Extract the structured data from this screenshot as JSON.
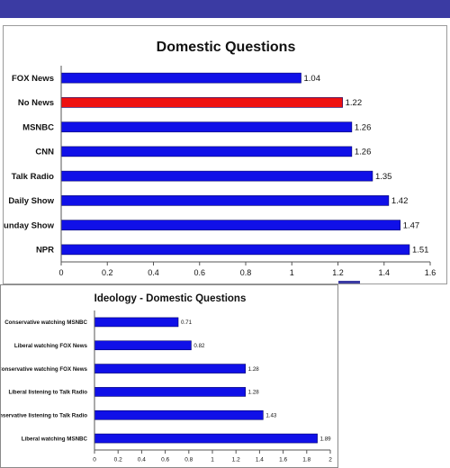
{
  "colors": {
    "top_band": "#3b3ba3",
    "bar": "#1010e8",
    "bar_highlight": "#ee1111",
    "axis": "#555555",
    "text": "#111111"
  },
  "chart_data": [
    {
      "type": "bar",
      "orientation": "horizontal",
      "title": "Domestic Questions",
      "categories": [
        "FOX News",
        "No News",
        "MSNBC",
        "CNN",
        "Talk Radio",
        "Daily Show",
        "Sunday Show",
        "NPR"
      ],
      "values": [
        1.04,
        1.22,
        1.26,
        1.26,
        1.35,
        1.42,
        1.47,
        1.51
      ],
      "value_labels": [
        "1.04",
        "1.22",
        "1.26",
        "1.26",
        "1.35",
        "1.42",
        "1.47",
        "1.51"
      ],
      "highlight": [
        "No News"
      ],
      "xlim": [
        0,
        1.6
      ],
      "xticks": [
        "0",
        "0.2",
        "0.4",
        "0.6",
        "0.8",
        "1",
        "1.2",
        "1.4",
        "1.6"
      ],
      "grid": false,
      "legend": "none"
    },
    {
      "type": "bar",
      "orientation": "horizontal",
      "title": "Ideology - Domestic Questions",
      "categories": [
        "Conservative watching MSNBC",
        "Liberal watching FOX News",
        "Conservative watching FOX News",
        "Liberal listening to Talk Radio",
        "Conservative listening to Talk Radio",
        "Liberal watching MSNBC"
      ],
      "values": [
        0.71,
        0.82,
        1.28,
        1.28,
        1.43,
        1.89
      ],
      "value_labels": [
        "0.71",
        "0.82",
        "1.28",
        "1.28",
        "1.43",
        "1.89"
      ],
      "highlight": [],
      "xlim": [
        0,
        2
      ],
      "xticks": [
        "0",
        "0.2",
        "0.4",
        "0.6",
        "0.8",
        "1",
        "1.2",
        "1.4",
        "1.6",
        "1.8",
        "2"
      ],
      "grid": false,
      "legend": "none"
    }
  ]
}
